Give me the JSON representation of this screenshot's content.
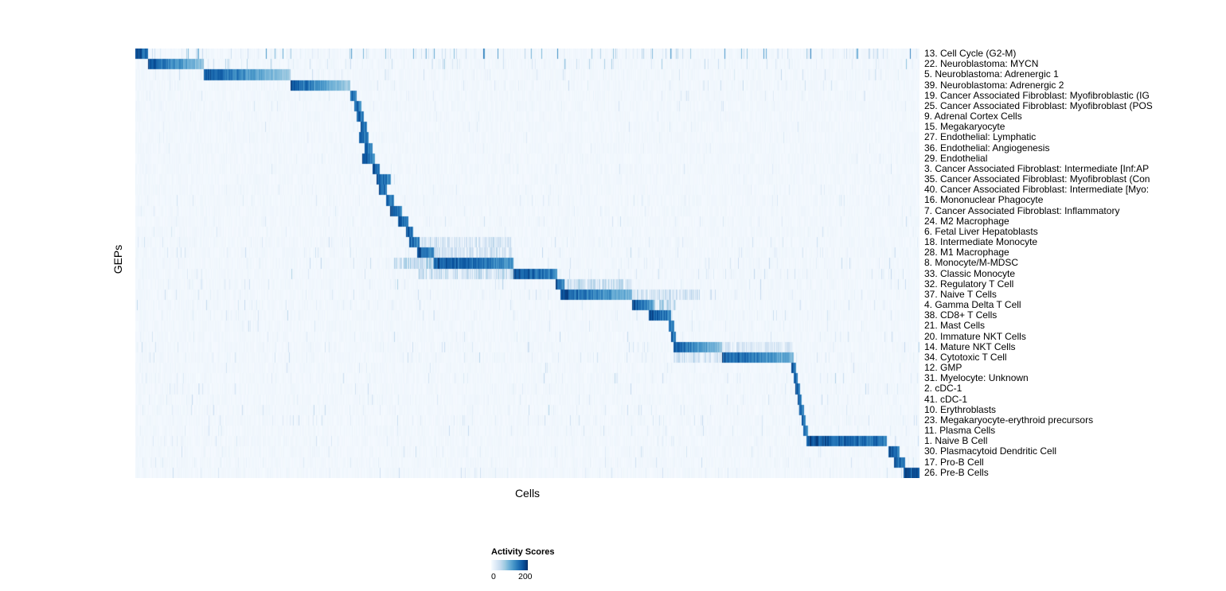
{
  "chart_data": {
    "type": "heatmap",
    "title": "",
    "xlabel": "Cells",
    "ylabel": "GEPs",
    "x_axis": {
      "label": "Cells",
      "tick_labels_shown": false
    },
    "y_axis": {
      "label": "GEPs",
      "tick_labels_shown": false
    },
    "legend": {
      "title": "Activity Scores",
      "min": 0,
      "max": 200,
      "tick_labels": [
        "0",
        "200"
      ],
      "position": "bottom"
    },
    "colormap": {
      "name": "Blues",
      "stops": [
        "#f7fbff",
        "#deebf7",
        "#c6dbef",
        "#9ecae1",
        "#6baed6",
        "#4292c6",
        "#2171b5",
        "#08519c",
        "#08306b"
      ]
    },
    "n_geps": 41,
    "description": "Consensus GEP activity heatmap; cells (columns) ordered by maximal program so high activity blocks run diagonally from top-left to bottom-right. block = [start,end] fraction of cell axis with high activity (~200), fade = intensity falloff across block, noise = scattered background activity level, diffuse = secondary moderate-activity ranges.",
    "rows": [
      {
        "label": "13. Cell Cycle (G2-M)",
        "block": [
          0.0,
          0.016
        ],
        "fade": 0.1,
        "noise": 0.85
      },
      {
        "label": "22. Neuroblastoma: MYCN",
        "block": [
          0.016,
          0.087
        ],
        "fade": 0.55,
        "noise": 0.45
      },
      {
        "label": "5. Neuroblastoma: Adrenergic 1",
        "block": [
          0.087,
          0.198
        ],
        "fade": 0.6,
        "noise": 0.3
      },
      {
        "label": "39. Neuroblastoma: Adrenergic 2",
        "block": [
          0.198,
          0.274
        ],
        "fade": 0.6,
        "noise": 0.3
      },
      {
        "label": "19. Cancer Associated Fibroblast: Myofibroblastic (IG",
        "block": [
          0.274,
          0.282
        ],
        "noise": 0.2
      },
      {
        "label": "25. Cancer Associated Fibroblast: Myofibroblast (POS",
        "block": [
          0.279,
          0.288
        ],
        "noise": 0.2
      },
      {
        "label": "9. Adrenal Cortex Cells",
        "block": [
          0.282,
          0.291
        ],
        "noise": 0.15
      },
      {
        "label": "15. Megakaryocyte",
        "block": [
          0.287,
          0.295
        ],
        "noise": 0.2
      },
      {
        "label": "27. Endothelial: Lymphatic",
        "block": [
          0.285,
          0.297
        ],
        "noise": 0.15
      },
      {
        "label": "36. Endothelial: Angiogenesis",
        "block": [
          0.292,
          0.302
        ],
        "noise": 0.15
      },
      {
        "label": "29. Endothelial",
        "block": [
          0.289,
          0.305
        ],
        "noise": 0.15
      },
      {
        "label": "3. Cancer Associated Fibroblast: Intermediate [Inf:AP",
        "block": [
          0.302,
          0.311
        ],
        "noise": 0.2
      },
      {
        "label": "35. Cancer Associated Fibroblast: Myofibroblast (Con",
        "block": [
          0.307,
          0.326
        ],
        "noise": 0.2
      },
      {
        "label": "40. Cancer Associated Fibroblast: Intermediate [Myo:",
        "block": [
          0.31,
          0.321
        ],
        "noise": 0.2
      },
      {
        "label": "16. Mononuclear Phagocyte",
        "block": [
          0.32,
          0.33
        ],
        "noise": 0.25
      },
      {
        "label": "7. Cancer Associated Fibroblast: Inflammatory",
        "block": [
          0.325,
          0.34
        ],
        "noise": 0.2
      },
      {
        "label": "24. M2 Macrophage",
        "block": [
          0.335,
          0.348
        ],
        "noise": 0.25
      },
      {
        "label": "6. Fetal Liver Hepatoblasts",
        "block": [
          0.345,
          0.354
        ],
        "noise": 0.2
      },
      {
        "label": "18. Intermediate Monocyte",
        "block": [
          0.349,
          0.362
        ],
        "noise": 0.3,
        "diffuse": [
          [
            0.362,
            0.48,
            0.3
          ]
        ]
      },
      {
        "label": "28. M1 Macrophage",
        "block": [
          0.359,
          0.381
        ],
        "noise": 0.3,
        "diffuse": [
          [
            0.381,
            0.48,
            0.3
          ]
        ]
      },
      {
        "label": "8. Monocyte/M-MDSC",
        "block": [
          0.381,
          0.482
        ],
        "fade": 0.25,
        "noise": 0.35,
        "diffuse": [
          [
            0.33,
            0.381,
            0.45
          ]
        ]
      },
      {
        "label": "33. Classic Monocyte",
        "block": [
          0.482,
          0.538
        ],
        "fade": 0.2,
        "noise": 0.35,
        "diffuse": [
          [
            0.36,
            0.482,
            0.35
          ]
        ]
      },
      {
        "label": "32. Regulatory T Cell",
        "block": [
          0.536,
          0.547
        ],
        "noise": 0.35,
        "diffuse": [
          [
            0.547,
            0.634,
            0.35
          ]
        ]
      },
      {
        "label": "37. Naive T Cells",
        "block": [
          0.542,
          0.634
        ],
        "fade": 0.45,
        "noise": 0.35,
        "diffuse": [
          [
            0.634,
            0.72,
            0.3
          ]
        ]
      },
      {
        "label": "4. Gamma Delta T Cell",
        "block": [
          0.634,
          0.661
        ],
        "fade": 0.3,
        "noise": 0.3,
        "diffuse": [
          [
            0.661,
            0.69,
            0.45
          ]
        ]
      },
      {
        "label": "38. CD8+ T Cells",
        "block": [
          0.655,
          0.683
        ],
        "fade": 0.2,
        "noise": 0.3
      },
      {
        "label": "21. Mast Cells",
        "block": [
          0.68,
          0.687
        ],
        "noise": 0.25
      },
      {
        "label": "20. Immature NKT Cells",
        "block": [
          0.683,
          0.69
        ],
        "noise": 0.3
      },
      {
        "label": "14. Mature NKT Cells",
        "block": [
          0.686,
          0.748
        ],
        "fade": 0.5,
        "noise": 0.3,
        "diffuse": [
          [
            0.748,
            0.84,
            0.25
          ]
        ]
      },
      {
        "label": "34. Cytotoxic T Cell",
        "block": [
          0.748,
          0.84
        ],
        "fade": 0.45,
        "noise": 0.35,
        "diffuse": [
          [
            0.686,
            0.748,
            0.3
          ]
        ]
      },
      {
        "label": "12. GMP",
        "block": [
          0.837,
          0.843
        ],
        "noise": 0.25
      },
      {
        "label": "31. Myelocyte: Unknown",
        "block": [
          0.84,
          0.845
        ],
        "noise": 0.35
      },
      {
        "label": "2. cDC-1",
        "block": [
          0.842,
          0.848
        ],
        "noise": 0.3
      },
      {
        "label": "41. cDC-1",
        "block": [
          0.845,
          0.85
        ],
        "noise": 0.3
      },
      {
        "label": "10. Erythroblasts",
        "block": [
          0.847,
          0.853
        ],
        "noise": 0.35
      },
      {
        "label": "23. Megakaryocyte-erythroid precursors",
        "block": [
          0.85,
          0.855
        ],
        "noise": 0.35
      },
      {
        "label": "11. Plasma Cells",
        "block": [
          0.852,
          0.858
        ],
        "noise": 0.3
      },
      {
        "label": "1. Naive B Cell",
        "block": [
          0.856,
          0.959
        ],
        "fade": 0.15,
        "noise": 0.3
      },
      {
        "label": "30. Plasmacytoid Dendritic Cell",
        "block": [
          0.961,
          0.975
        ],
        "noise": 0.25
      },
      {
        "label": "17. Pro-B Cell",
        "block": [
          0.968,
          0.982
        ],
        "noise": 0.25
      },
      {
        "label": "26. Pre-B Cells",
        "block": [
          0.98,
          1.0
        ],
        "fade": 0.05,
        "noise": 0.3
      }
    ]
  }
}
